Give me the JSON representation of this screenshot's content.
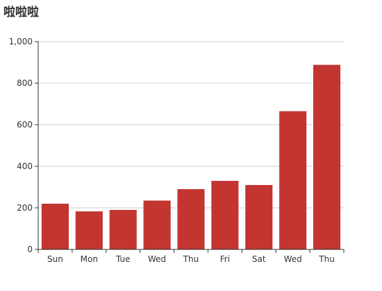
{
  "chart_data": {
    "type": "bar",
    "title": "啦啦啦",
    "categories": [
      "Sun",
      "Mon",
      "Tue",
      "Wed",
      "Thu",
      "Fri",
      "Sat",
      "Wed",
      "Thu"
    ],
    "series": [
      {
        "values": [
          220,
          183,
          190,
          235,
          290,
          330,
          310,
          665,
          888
        ]
      }
    ],
    "ylim": [
      0,
      1000
    ],
    "yticks": [
      0,
      200,
      400,
      600,
      800,
      1000
    ],
    "ytick_labels": [
      "0",
      "200",
      "400",
      "600",
      "800",
      "1,000"
    ],
    "grid": true,
    "bar_color": "#c23531",
    "grid_color": "#cccccc",
    "axis_color": "#333333"
  }
}
